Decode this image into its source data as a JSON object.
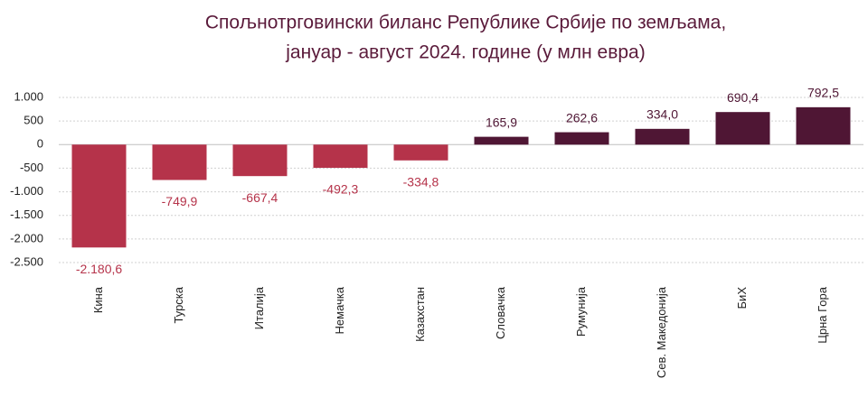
{
  "chart_data": {
    "type": "bar",
    "title": [
      "Спољнотрговински биланс Републике Србије по земљама,",
      "јануар - август 2024. године (у млн евра)"
    ],
    "categories": [
      "Кина",
      "Турска",
      "Италија",
      "Немачка",
      "Казахстан",
      "Словачка",
      "Румунија",
      "Сев. Македонија",
      "БиХ",
      "Црна Гора"
    ],
    "values": [
      -2180.6,
      -749.9,
      -667.4,
      -492.3,
      -334.8,
      165.9,
      262.6,
      334.0,
      690.4,
      792.5
    ],
    "value_labels": [
      "-2.180,6",
      "-749,9",
      "-667,4",
      "-492,3",
      "-334,8",
      "165,9",
      "262,6",
      "334,0",
      "690,4",
      "792,5"
    ],
    "colors": [
      "#b5334a",
      "#b5334a",
      "#b5334a",
      "#b5334a",
      "#b5334a",
      "#4f1634",
      "#4f1634",
      "#4f1634",
      "#4f1634",
      "#4f1634"
    ],
    "ylim": [
      -2500,
      1000
    ],
    "yticks": [
      {
        "value": 1000,
        "label": "1.000"
      },
      500,
      0,
      -500,
      {
        "value": -1000,
        "label": "-1.000"
      },
      {
        "value": -1500,
        "label": "-1.500"
      },
      {
        "value": -2000,
        "label": "-2.000"
      },
      {
        "value": -2500,
        "label": "-2.500"
      }
    ],
    "grid": true
  }
}
